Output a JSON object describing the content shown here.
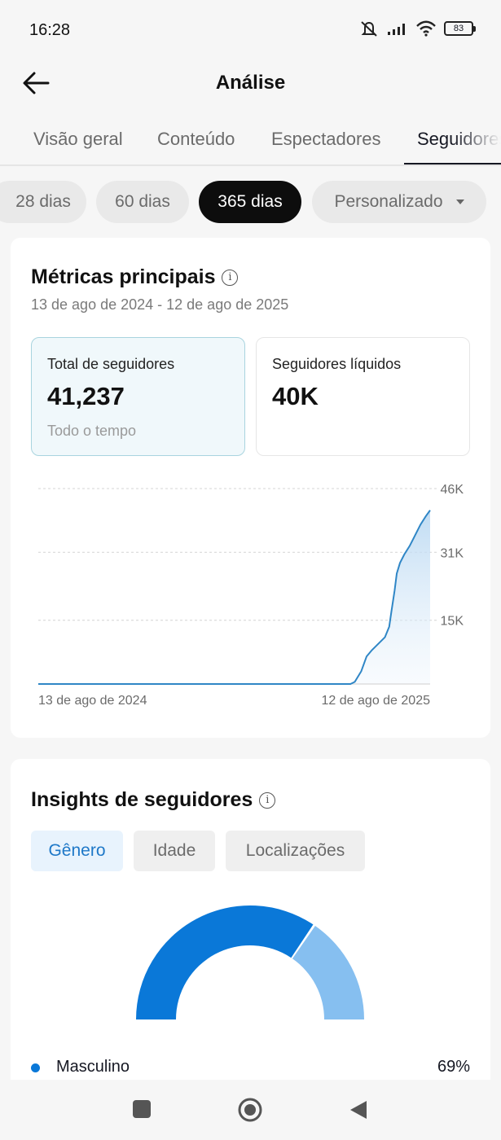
{
  "status": {
    "time": "16:28",
    "battery": "83"
  },
  "header": {
    "title": "Análise",
    "back_icon": "arrow-left-icon"
  },
  "tabs": [
    {
      "label": "Visão geral",
      "active": false
    },
    {
      "label": "Conteúdo",
      "active": false
    },
    {
      "label": "Espectadores",
      "active": false
    },
    {
      "label": "Seguidores",
      "active": true
    }
  ],
  "ranges": [
    {
      "label": "28 dias",
      "active": false
    },
    {
      "label": "60 dias",
      "active": false
    },
    {
      "label": "365 dias",
      "active": true
    },
    {
      "label": "Personalizado",
      "active": false,
      "dropdown": true
    }
  ],
  "key_metrics": {
    "title": "Métricas principais",
    "date_range": "13 de ago de 2024 - 12 de ago de 2025",
    "cards": [
      {
        "label": "Total de seguidores",
        "value": "41,237",
        "note": "Todo o tempo",
        "selected": true
      },
      {
        "label": "Seguidores líquidos",
        "value": "40K",
        "note": "",
        "selected": false
      }
    ]
  },
  "chart_data": {
    "type": "area",
    "title": "",
    "xlabel": "",
    "ylabel": "",
    "x_tick_labels": [
      "13 de ago de 2024",
      "12 de ago de 2025"
    ],
    "y_tick_labels": [
      "46K",
      "31K",
      "15K"
    ],
    "y_ticks": [
      46000,
      31000,
      15000
    ],
    "ylim": [
      0,
      46000
    ],
    "grid": true,
    "line_color": "#2f86c6",
    "series": [
      {
        "x": [
          0,
          20,
          40,
          60,
          80,
          100,
          120,
          140,
          160,
          180,
          200,
          220,
          240,
          260,
          280,
          290,
          294,
          300,
          305,
          310,
          316,
          322,
          326,
          328,
          331,
          333,
          336,
          340,
          345,
          350,
          355,
          360,
          364
        ],
        "values": [
          0,
          0,
          0,
          0,
          0,
          0,
          0,
          0,
          0,
          0,
          0,
          0,
          0,
          0,
          0,
          0,
          500,
          3000,
          6500,
          8000,
          9500,
          11000,
          13500,
          17000,
          22000,
          26000,
          28500,
          30500,
          32500,
          35000,
          37500,
          39500,
          40900
        ]
      }
    ]
  },
  "insights": {
    "title": "Insights de seguidores",
    "tabs": [
      {
        "label": "Gênero",
        "active": true
      },
      {
        "label": "Idade",
        "active": false
      },
      {
        "label": "Localizações",
        "active": false
      }
    ],
    "gender": [
      {
        "label": "Masculino",
        "percent": "69%",
        "value": 69,
        "color": "#0a78d8"
      },
      {
        "label": "",
        "percent": "",
        "value": 31,
        "color": "#86bff0"
      }
    ]
  },
  "nav": {
    "recent_icon": "square-icon",
    "home_icon": "circle-icon",
    "back_icon": "triangle-back-icon"
  }
}
